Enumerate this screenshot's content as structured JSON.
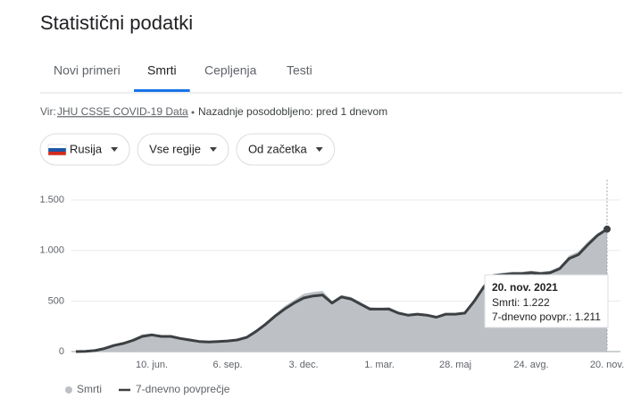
{
  "header": {
    "title": "Statistični podatki"
  },
  "tabs": [
    "Novi primeri",
    "Smrti",
    "Cepljenja",
    "Testi"
  ],
  "active_tab": 1,
  "source": {
    "prefix": "Vir:",
    "link": "JHU CSSE COVID-19 Data",
    "updated": "Nazadnje posodobljeno: pred 1 dnevom"
  },
  "filters": [
    "Rusija",
    "Vse regije",
    "Od začetka"
  ],
  "tooltip": {
    "title": "20. nov. 2021",
    "items": [
      "Smrti: 1.222",
      "7-dnevno povpr.: 1.211"
    ]
  },
  "chart_data": {
    "type": "area-line",
    "categories": [
      null,
      null,
      null,
      null,
      null,
      null,
      null,
      null,
      "10. jun.",
      null,
      null,
      null,
      null,
      null,
      null,
      null,
      "6. sep.",
      null,
      null,
      null,
      null,
      null,
      null,
      null,
      "3. dec.",
      null,
      null,
      null,
      null,
      null,
      null,
      null,
      "1. mar.",
      null,
      null,
      null,
      null,
      null,
      null,
      null,
      "28. maj",
      null,
      null,
      null,
      null,
      null,
      null,
      null,
      "24. avg.",
      null,
      null,
      null,
      null,
      null,
      null,
      null,
      "20. nov."
    ],
    "series": [
      {
        "name": "Smrti",
        "color": "#bdc1c6",
        "values": [
          0,
          3,
          12,
          35,
          65,
          90,
          125,
          170,
          180,
          160,
          155,
          135,
          120,
          105,
          98,
          104,
          110,
          120,
          150,
          215,
          290,
          370,
          450,
          510,
          570,
          590,
          600,
          500,
          560,
          540,
          490,
          440,
          430,
          440,
          395,
          370,
          380,
          370,
          350,
          380,
          380,
          390,
          520,
          660,
          770,
          780,
          790,
          790,
          800,
          790,
          800,
          840,
          950,
          990,
          1090,
          1170,
          1222
        ]
      },
      {
        "name": "7-dnevno povprečje",
        "color": "#3c4043",
        "values": [
          0,
          2,
          10,
          30,
          60,
          80,
          110,
          150,
          165,
          150,
          150,
          130,
          115,
          100,
          95,
          100,
          105,
          115,
          140,
          200,
          270,
          350,
          420,
          480,
          530,
          550,
          560,
          480,
          540,
          520,
          470,
          420,
          420,
          420,
          380,
          360,
          370,
          360,
          340,
          370,
          370,
          380,
          500,
          640,
          750,
          760,
          770,
          770,
          780,
          770,
          780,
          820,
          920,
          960,
          1060,
          1150,
          1211
        ]
      }
    ],
    "ylim": [
      0,
      1700
    ],
    "yticks": [
      0,
      500,
      {
        "value": 1000,
        "label": "1.000"
      },
      {
        "value": 1500,
        "label": "1.500"
      }
    ],
    "grid": true
  }
}
